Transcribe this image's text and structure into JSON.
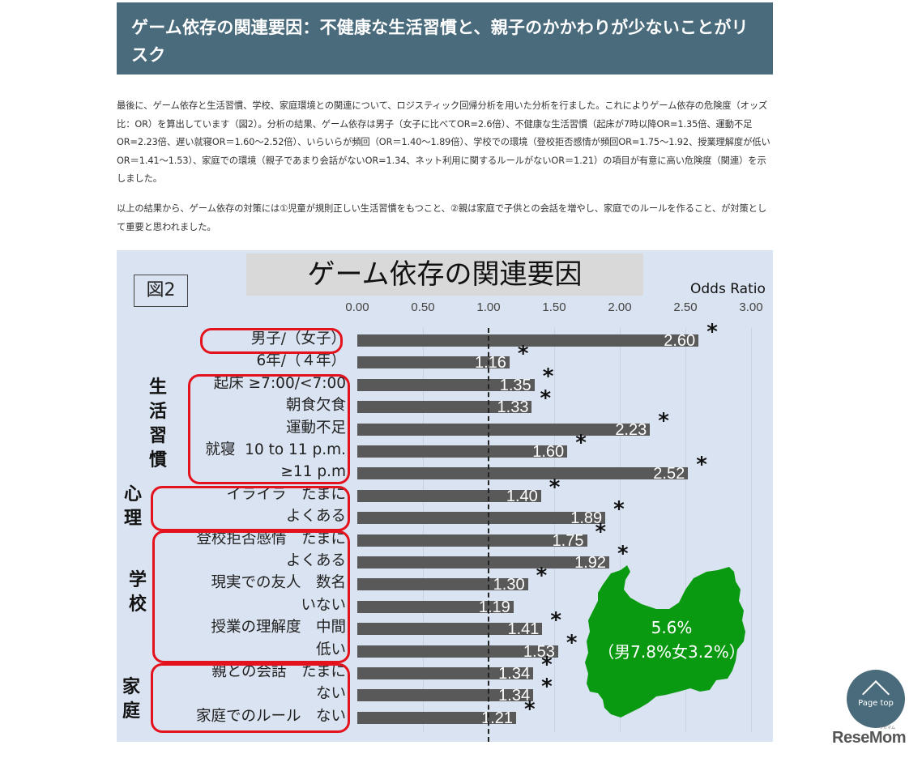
{
  "article": {
    "heading": "ゲーム依存の関連要因：不健康な生活習慣と、親子のかかわりが少ないことがリスク",
    "paragraph1": "最後に、ゲーム依存と生活習慣、学校、家庭環境との関連について、ロジスティック回帰分析を用いた分析を行ました。これによりゲーム依存の危険度（オッズ比：OR）を算出しています（図2）。分析の結果、ゲーム依存は男子（女子に比べてOR=2.6倍）、不健康な生活習慣（起床が7時以降OR=1.35倍、運動不足OR=2.23倍、遅い就寝OR＝1.60～2.52倍）、いらいらが頻回（OR＝1.40～1.89倍）、学校での環境（登校拒否感情が頻回OR=1.75～1.92、授業理解度が低いOR＝1.41～1.53）、家庭での環境（親子であまり会話がないOR=1.34、ネット利用に関するルールがないOR＝1.21）の項目が有意に高い危険度（関連）を示しました。",
    "paragraph2": "以上の結果から、ゲーム依存の対策には①児童が規則正しい生活習慣をもつこと、②親は家庭で子供との会話を増やし、家庭でのルールを作ること、が対策として重要と思われました。"
  },
  "figure": {
    "number_label": "図2",
    "title": "ゲーム依存の関連要因",
    "axis_label": "Odds Ratio",
    "categories": {
      "lifestyle": "生\n活\n習\n慣",
      "psych": "心\n理",
      "school": "学\n校",
      "home": "家\n庭"
    },
    "map_text": {
      "line1": "5.6%",
      "line2": "（男7.8%女3.2%）"
    },
    "map_color": "#0a9a12",
    "bar_color": "#595959",
    "highlight_color": "#e3121d",
    "background_color": "#dae3f1"
  },
  "chart_data": {
    "type": "bar",
    "orientation": "horizontal",
    "title": "ゲーム依存の関連要因",
    "xlabel": "Odds Ratio",
    "ylabel": "",
    "xlim": [
      0,
      3
    ],
    "x_ticks": [
      "0.00",
      "0.50",
      "1.00",
      "1.50",
      "2.00",
      "2.50",
      "3.00"
    ],
    "reference_line": 1.0,
    "grid": true,
    "categories": [
      "男子/（女子）",
      "6年/（４年）",
      "起床 ≥7:00/<7:00",
      "朝食欠食",
      "運動不足",
      "就寝 10 to 11 p.m.",
      "≥11 p.m",
      "イライラ たまに",
      "よくある",
      "登校拒否感情 たまに",
      "よくある",
      "現実での友人 数名",
      "いない",
      "授業の理解度 中間",
      "低い",
      "親との会話 たまに",
      "ない",
      "家庭でのルール ない"
    ],
    "values": [
      2.6,
      1.16,
      1.35,
      1.33,
      2.23,
      1.6,
      2.52,
      1.4,
      1.89,
      1.75,
      1.92,
      1.3,
      1.19,
      1.41,
      1.53,
      1.34,
      1.34,
      1.21
    ],
    "value_labels": [
      "2.60",
      "1.16",
      "1.35",
      "1.33",
      "2.23",
      "1.60",
      "2.52",
      "1.40",
      "1.89",
      "1.75",
      "1.92",
      "1.30",
      "1.19",
      "1.41",
      "1.53",
      "1.34",
      "1.34",
      "1.21"
    ],
    "significant": [
      true,
      true,
      true,
      true,
      true,
      true,
      true,
      true,
      true,
      true,
      true,
      true,
      false,
      true,
      true,
      true,
      true,
      true
    ],
    "groups": [
      {
        "name": "生活習慣",
        "rows": [
          2,
          6
        ]
      },
      {
        "name": "心理",
        "rows": [
          7,
          8
        ]
      },
      {
        "name": "学校",
        "rows": [
          9,
          14
        ]
      },
      {
        "name": "家庭",
        "rows": [
          15,
          17
        ]
      }
    ],
    "annotation": "5.6%（男7.8%女3.2%）"
  },
  "page_top": {
    "label": "Page top"
  },
  "brand": {
    "logo": "ReseMom",
    "logo_small": "リセマム"
  }
}
